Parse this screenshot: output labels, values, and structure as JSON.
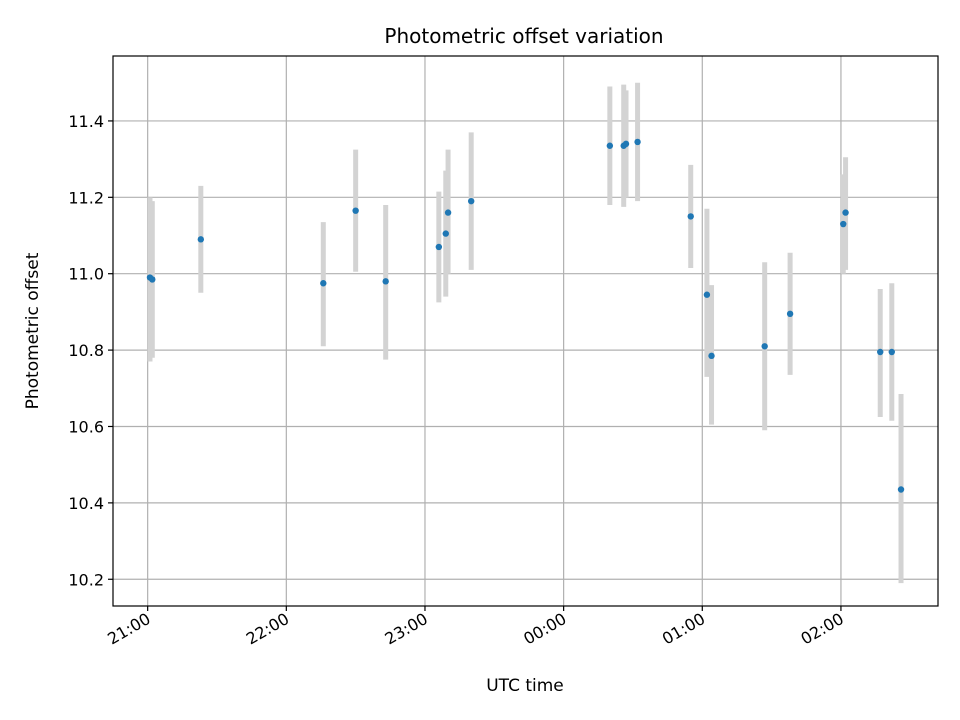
{
  "chart_data": {
    "type": "scatter",
    "title": "Photometric offset variation",
    "xlabel": "UTC time",
    "ylabel": "Photometric offset",
    "x_unit": "UTC time (HH:MM)",
    "xlim": [
      "20:45",
      "02:42"
    ],
    "ylim": [
      10.13,
      11.57
    ],
    "x_ticks": [
      "21:00",
      "22:00",
      "23:00",
      "00:00",
      "01:00",
      "02:00"
    ],
    "y_ticks": [
      10.2,
      10.4,
      10.6,
      10.8,
      11.0,
      11.2,
      11.4
    ],
    "grid": true,
    "marker_color": "#1f77b4",
    "errorbar_color": "#d3d3d3",
    "points": [
      {
        "x": "21:01",
        "y": 10.99,
        "low": 10.77,
        "high": 11.2
      },
      {
        "x": "21:02",
        "y": 10.985,
        "low": 10.78,
        "high": 11.19
      },
      {
        "x": "21:23",
        "y": 11.09,
        "low": 10.95,
        "high": 11.23
      },
      {
        "x": "22:16",
        "y": 10.975,
        "low": 10.81,
        "high": 11.135
      },
      {
        "x": "22:30",
        "y": 11.165,
        "low": 11.005,
        "high": 11.325
      },
      {
        "x": "22:43",
        "y": 10.98,
        "low": 10.775,
        "high": 11.18
      },
      {
        "x": "23:06",
        "y": 11.07,
        "low": 10.925,
        "high": 11.215
      },
      {
        "x": "23:09",
        "y": 11.105,
        "low": 10.94,
        "high": 11.27
      },
      {
        "x": "23:10",
        "y": 11.16,
        "low": 11.0,
        "high": 11.325
      },
      {
        "x": "23:20",
        "y": 11.19,
        "low": 11.01,
        "high": 11.37
      },
      {
        "x": "00:20",
        "y": 11.335,
        "low": 11.18,
        "high": 11.49
      },
      {
        "x": "00:26",
        "y": 11.335,
        "low": 11.175,
        "high": 11.495
      },
      {
        "x": "00:27",
        "y": 11.34,
        "low": 11.2,
        "high": 11.48
      },
      {
        "x": "00:32",
        "y": 11.345,
        "low": 11.19,
        "high": 11.5
      },
      {
        "x": "00:55",
        "y": 11.15,
        "low": 11.015,
        "high": 11.285
      },
      {
        "x": "01:02",
        "y": 10.945,
        "low": 10.73,
        "high": 11.17
      },
      {
        "x": "01:04",
        "y": 10.785,
        "low": 10.605,
        "high": 10.97
      },
      {
        "x": "01:27",
        "y": 10.81,
        "low": 10.59,
        "high": 11.03
      },
      {
        "x": "01:38",
        "y": 10.895,
        "low": 10.735,
        "high": 11.055
      },
      {
        "x": "02:01",
        "y": 11.13,
        "low": 11.0,
        "high": 11.26
      },
      {
        "x": "02:02",
        "y": 11.16,
        "low": 11.01,
        "high": 11.305
      },
      {
        "x": "02:17",
        "y": 10.795,
        "low": 10.625,
        "high": 10.96
      },
      {
        "x": "02:22",
        "y": 10.795,
        "low": 10.615,
        "high": 10.975
      },
      {
        "x": "02:26",
        "y": 10.435,
        "low": 10.19,
        "high": 10.685
      }
    ]
  }
}
